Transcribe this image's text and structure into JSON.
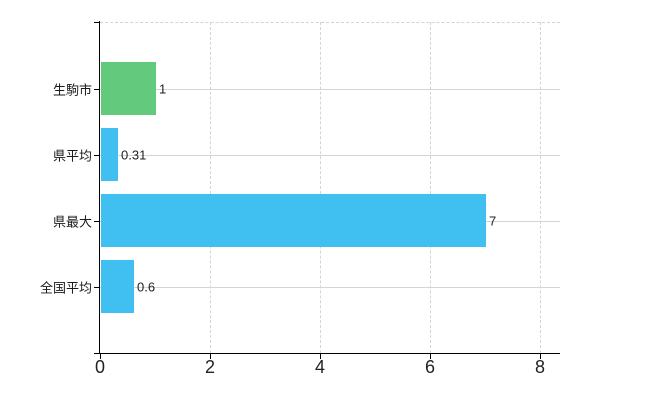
{
  "chart_data": {
    "type": "bar",
    "orientation": "horizontal",
    "title": "",
    "categories": [
      "生駒市",
      "県平均",
      "県最大",
      "全国平均"
    ],
    "values": [
      1,
      0.31,
      7,
      0.6
    ],
    "value_labels": [
      "1",
      "0.31",
      "7",
      "0.6"
    ],
    "series": [
      {
        "name": "",
        "values": [
          1,
          0.31,
          7,
          0.6
        ]
      }
    ],
    "bar_colors": [
      "#63c97d",
      "#3fc0f0",
      "#3fc0f0",
      "#3fc0f0"
    ],
    "xlim": [
      0,
      8
    ],
    "xticks": [
      0,
      2,
      4,
      6,
      8
    ],
    "xtick_labels": [
      "0",
      "2",
      "4",
      "6",
      "8"
    ],
    "xlabel": "",
    "ylabel": "",
    "legend": "none",
    "grid": {
      "horizontal_style": "solid",
      "vertical_style": "dashed",
      "color": "#d4d4d4"
    }
  },
  "colors": {
    "background": "#ffffff",
    "axis": "#000000",
    "grid": "#d4d4d4",
    "text": "#222222",
    "bar_blue": "#3fc0f0",
    "bar_green": "#63c97d"
  }
}
